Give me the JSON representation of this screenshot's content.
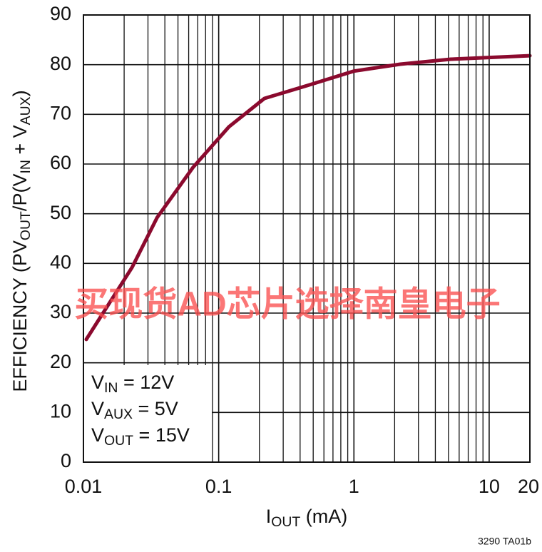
{
  "chart_data": {
    "type": "line",
    "ylabel": [
      "EFFICIENCY (PV",
      "OUT",
      "/P(V",
      "IN",
      " + V",
      "AUX",
      ")"
    ],
    "xlabel": [
      "I",
      "OUT",
      " (mA)"
    ],
    "annotation": [
      [
        "V",
        "IN",
        " = 12V"
      ],
      [
        "V",
        "AUX",
        " = 5V"
      ],
      [
        "V",
        "OUT",
        " = 15V"
      ]
    ],
    "footnote": "3290 TA01b",
    "watermark": "买现货AD芯片选择南皇电子",
    "x": [
      0.0105,
      0.0229,
      0.035,
      0.0645,
      0.119,
      0.218,
      0.453,
      1.0,
      2.2,
      5.2,
      20
    ],
    "series": [
      {
        "color": "#8b0a2e",
        "values": [
          24.7,
          39.2,
          49.2,
          59.3,
          67.5,
          73.2,
          75.8,
          78.7,
          80.1,
          81.1,
          81.8
        ]
      }
    ],
    "xscale": "log",
    "xlim": [
      0.01,
      20
    ],
    "xticks": [
      0.01,
      0.1,
      1,
      10,
      20
    ],
    "xminorticks": [
      0.02,
      0.03,
      0.04,
      0.05,
      0.06,
      0.07,
      0.08,
      0.09,
      0.2,
      0.3,
      0.4,
      0.5,
      0.6,
      0.7,
      0.8,
      0.9,
      2,
      3,
      4,
      5,
      6,
      7,
      8,
      9
    ],
    "ylim": [
      0,
      90
    ],
    "yticks": [
      0,
      10,
      20,
      30,
      40,
      50,
      60,
      70,
      80,
      90
    ],
    "grid": true
  }
}
